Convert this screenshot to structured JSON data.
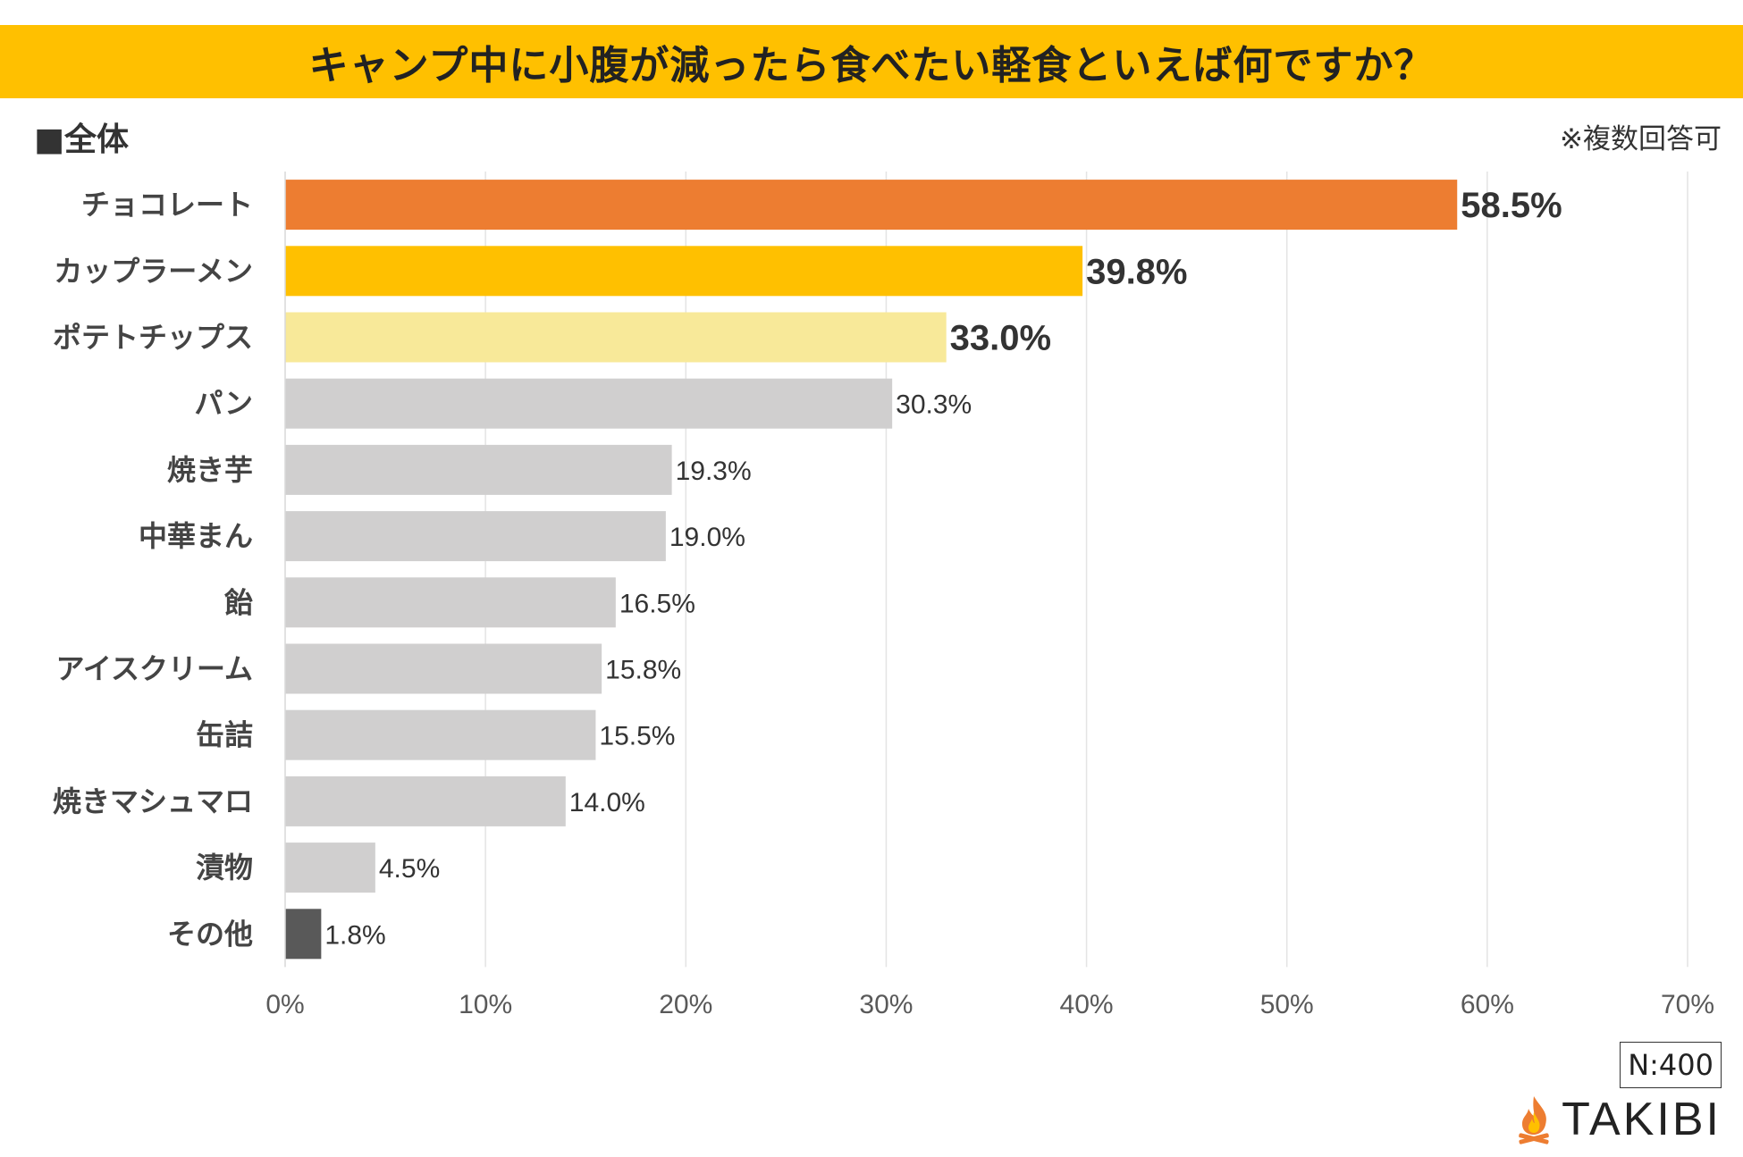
{
  "header": {
    "title": "キャンプ中に小腹が減ったら食べたい軽食といえば何ですか？",
    "band_color": "#FFC000"
  },
  "subtitle": "■全体",
  "note": "※複数回答可",
  "sample_size": "N:400",
  "brand": {
    "name": "TAKIBI",
    "icon": "campfire-icon"
  },
  "chart_data": {
    "type": "bar",
    "orientation": "horizontal",
    "title": "キャンプ中に小腹が減ったら食べたい軽食といえば何ですか？",
    "categories": [
      "チョコレート",
      "カップラーメン",
      "ポテトチップス",
      "パン",
      "焼き芋",
      "中華まん",
      "飴",
      "アイスクリーム",
      "缶詰",
      "焼きマシュマロ",
      "漬物",
      "その他"
    ],
    "values": [
      58.5,
      39.8,
      33.0,
      30.3,
      19.3,
      19.0,
      16.5,
      15.8,
      15.5,
      14.0,
      4.5,
      1.8
    ],
    "value_labels": [
      "58.5%",
      "39.8%",
      "33.0%",
      "30.3%",
      "19.3%",
      "19.0%",
      "16.5%",
      "15.8%",
      "15.5%",
      "14.0%",
      "4.5%",
      "1.8%"
    ],
    "bar_colors": [
      "#ED7D31",
      "#FFC000",
      "#F8E999",
      "#D0CFCF",
      "#D0CFCF",
      "#D0CFCF",
      "#D0CFCF",
      "#D0CFCF",
      "#D0CFCF",
      "#D0CFCF",
      "#D0CFCF",
      "#595959"
    ],
    "highlight_top": 3,
    "xlim": [
      0,
      70
    ],
    "xticks": [
      0,
      10,
      20,
      30,
      40,
      50,
      60,
      70
    ],
    "xtick_labels": [
      "0%",
      "10%",
      "20%",
      "30%",
      "40%",
      "50%",
      "60%",
      "70%"
    ],
    "xlabel": "",
    "ylabel": "",
    "grid": true,
    "legend": "none"
  }
}
